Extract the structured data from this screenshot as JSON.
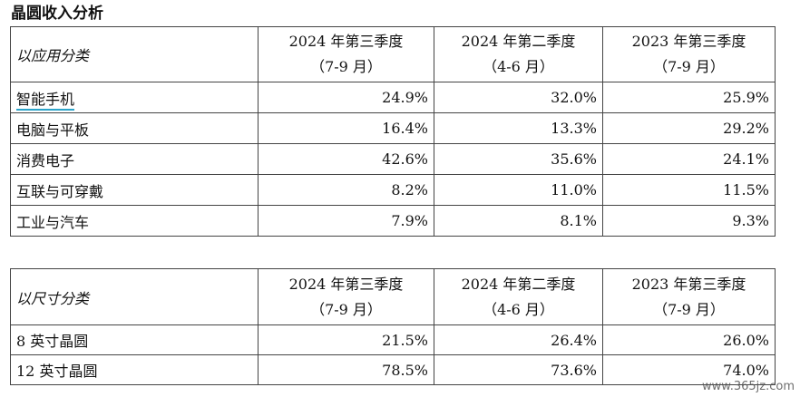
{
  "title": "晶圆收入分析",
  "table1": {
    "header_label": "以应用分类",
    "columns": [
      {
        "line1": "2024 年第三季度",
        "line2": "（7-9 月）"
      },
      {
        "line1": "2024 年第二季度",
        "line2": "（4-6 月）"
      },
      {
        "line1": "2023 年第三季度",
        "line2": "（7-9 月）"
      }
    ],
    "rows": [
      {
        "label": "智能手机",
        "values": [
          "24.9%",
          "32.0%",
          "25.9%"
        ]
      },
      {
        "label": "电脑与平板",
        "values": [
          "16.4%",
          "13.3%",
          "29.2%"
        ]
      },
      {
        "label": "消费电子",
        "values": [
          "42.6%",
          "35.6%",
          "24.1%"
        ]
      },
      {
        "label": "互联与可穿戴",
        "values": [
          "8.2%",
          "11.0%",
          "11.5%"
        ]
      },
      {
        "label": "工业与汽车",
        "values": [
          "7.9%",
          "8.1%",
          "9.3%"
        ]
      }
    ]
  },
  "table2": {
    "header_label": "以尺寸分类",
    "columns": [
      {
        "line1": "2024 年第三季度",
        "line2": "（7-9 月）"
      },
      {
        "line1": "2024 年第二季度",
        "line2": "（4-6 月）"
      },
      {
        "line1": "2023 年第三季度",
        "line2": "（7-9 月）"
      }
    ],
    "rows": [
      {
        "label": "8 英寸晶圆",
        "values": [
          "21.5%",
          "26.4%",
          "26.0%"
        ]
      },
      {
        "label": "12 英寸晶圆",
        "values": [
          "78.5%",
          "73.6%",
          "74.0%"
        ]
      }
    ]
  },
  "watermark": "www.365jz.com",
  "colors": {
    "link_underline": "#2aa3c9",
    "border": "#444444"
  }
}
